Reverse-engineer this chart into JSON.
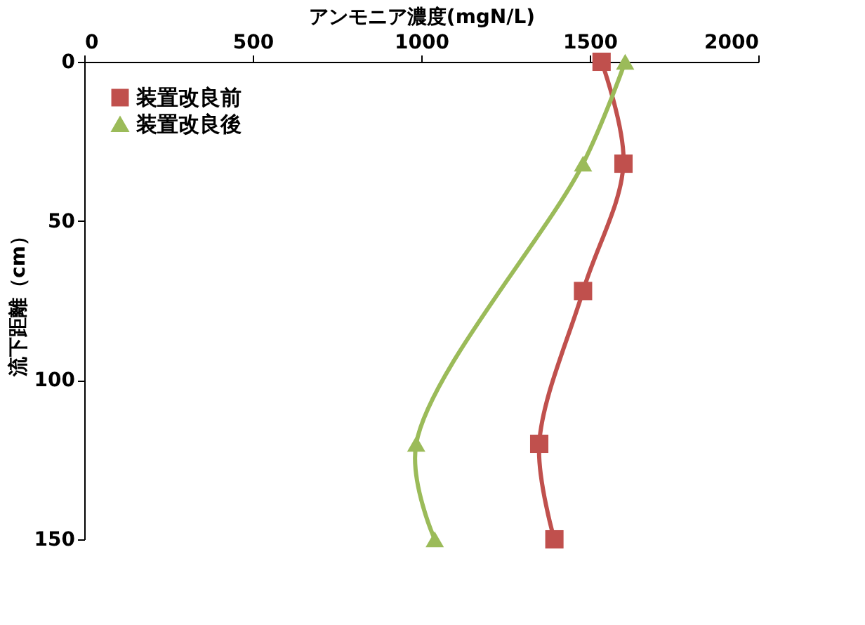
{
  "chart_data": {
    "type": "line",
    "xlabel": "アンモニア濃度(mgN/L)",
    "ylabel": "流下距離（cm）",
    "xlim": [
      0,
      2000
    ],
    "xticks": [
      0,
      500,
      1000,
      1500,
      2000
    ],
    "ylim": [
      150,
      0
    ],
    "yticks": [
      0,
      50,
      100,
      150
    ],
    "legend": "top left",
    "grid": false,
    "series": [
      {
        "name": "装置改良前",
        "color": "#c0504d",
        "marker": "square",
        "x": [
          1535,
          1600,
          1480,
          1350,
          1395
        ],
        "values": [
          0,
          32,
          72,
          120,
          150
        ]
      },
      {
        "name": "装置改良後",
        "color": "#9bbb59",
        "marker": "triangle",
        "x": [
          1605,
          1480,
          985,
          1040
        ],
        "values": [
          0,
          32,
          120,
          150
        ]
      }
    ]
  }
}
